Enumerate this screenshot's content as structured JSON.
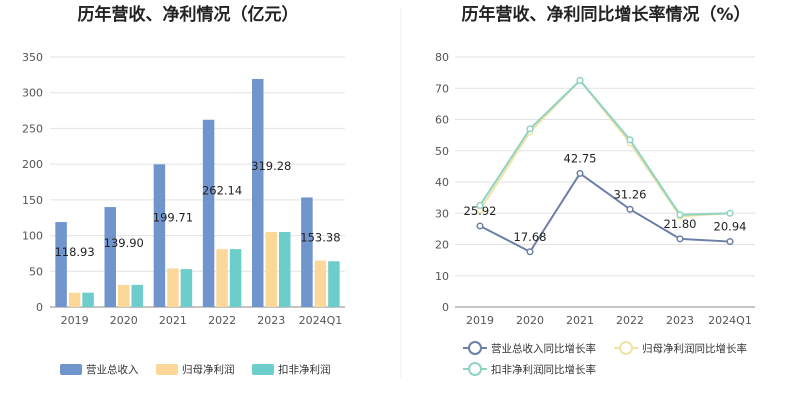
{
  "chart_data": [
    {
      "type": "bar",
      "title": "历年营收、净利情况（亿元）",
      "categories": [
        "2019",
        "2020",
        "2021",
        "2022",
        "2023",
        "2024Q1"
      ],
      "ylim": [
        0,
        350
      ],
      "yticks": [
        0,
        50,
        100,
        150,
        200,
        250,
        300,
        350
      ],
      "grid": true,
      "legend_position": "bottom",
      "series": [
        {
          "name": "营业总收入",
          "color": "#6f95cc",
          "values": [
            118.93,
            139.9,
            199.71,
            262.14,
            319.28,
            153.38
          ]
        },
        {
          "name": "归母净利润",
          "color": "#fcd79a",
          "values": [
            20,
            31,
            54,
            81,
            105,
            65
          ]
        },
        {
          "name": "扣非净利润",
          "color": "#6ccdcb",
          "values": [
            20,
            31,
            53,
            81,
            105,
            64
          ]
        }
      ],
      "data_labels": [
        "118.93",
        "139.90",
        "199.71",
        "262.14",
        "319.28",
        "153.38"
      ]
    },
    {
      "type": "line",
      "title": "历年营收、净利同比增长率情况（%）",
      "categories": [
        "2019",
        "2020",
        "2021",
        "2022",
        "2023",
        "2024Q1"
      ],
      "ylim": [
        0,
        80
      ],
      "yticks": [
        0,
        10,
        20,
        30,
        40,
        50,
        60,
        70,
        80
      ],
      "grid": true,
      "legend_position": "bottom",
      "series": [
        {
          "name": "营业总收入同比增长率",
          "color": "#6b7fa8",
          "values": [
            25.92,
            17.68,
            42.75,
            31.26,
            21.8,
            20.94
          ]
        },
        {
          "name": "归母净利润同比增长率",
          "color": "#f2e3a5",
          "values": [
            31,
            56,
            72.5,
            52.5,
            29,
            30
          ]
        },
        {
          "name": "扣非净利润同比增长率",
          "color": "#8fd3c3",
          "values": [
            32.5,
            57,
            72.5,
            53.5,
            29.5,
            30
          ]
        }
      ],
      "data_labels": [
        "25.92",
        "17.68",
        "42.75",
        "31.26",
        "21.80",
        "20.94"
      ]
    }
  ]
}
